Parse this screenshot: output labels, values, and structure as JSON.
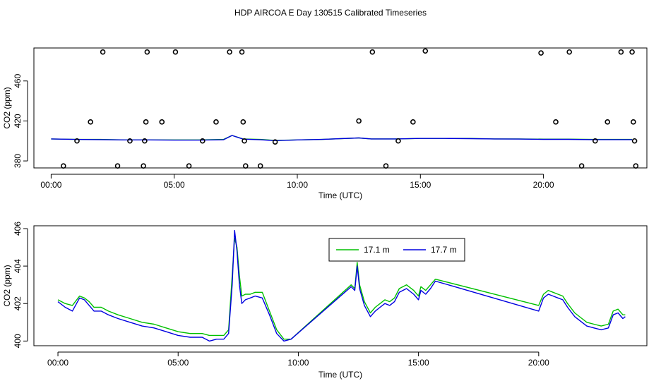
{
  "figure": {
    "title": "HDP AIRCOA E  Day 130515  Calibrated Timeseries"
  },
  "chart_data": [
    {
      "type": "scatter",
      "xlabel": "Time (UTC)",
      "ylabel": "CO2 (ppm)",
      "xlim": [
        -0.7,
        24.2
      ],
      "ylim": [
        373,
        493
      ],
      "x_ticks": [
        0,
        5,
        10,
        15,
        20
      ],
      "x_tick_labels": [
        "00:00",
        "05:00",
        "10:00",
        "15:00",
        "20:00"
      ],
      "y_ticks": [
        380,
        420,
        460
      ],
      "y_tick_labels": [
        "380",
        "420",
        "460"
      ],
      "grid": false,
      "points": {
        "marker": "open-circle",
        "color": "#000000",
        "x": [
          0.5,
          1.05,
          1.6,
          2.1,
          2.7,
          3.2,
          3.75,
          3.8,
          3.85,
          3.9,
          4.5,
          5.05,
          5.6,
          6.15,
          6.7,
          7.25,
          7.75,
          7.8,
          7.85,
          7.9,
          8.5,
          9.1,
          12.5,
          13.05,
          13.6,
          14.1,
          14.7,
          15.2,
          19.9,
          20.5,
          21.05,
          21.55,
          22.1,
          22.6,
          23.15,
          23.6,
          23.65,
          23.7,
          23.75
        ],
        "y": [
          375,
          400,
          419,
          489,
          375,
          400,
          375,
          400,
          419,
          489,
          419,
          489,
          375,
          400,
          419,
          489,
          489,
          419,
          400,
          375,
          375,
          399,
          420,
          489,
          375,
          400,
          419,
          490,
          488,
          419,
          489,
          375,
          400,
          419,
          489,
          489,
          419,
          400,
          375
        ]
      },
      "series": [
        {
          "name": "17.1 m",
          "color": "#00c000",
          "x": [
            0,
            1,
            2,
            3,
            4,
            5,
            6,
            7,
            7.35,
            7.8,
            8.5,
            9.1,
            10,
            11,
            12.5,
            13,
            14,
            15,
            16,
            17,
            18,
            19,
            20,
            21,
            22,
            23,
            23.6
          ],
          "y": [
            402,
            401.5,
            401.5,
            401,
            401,
            401,
            401,
            401.5,
            405.5,
            402,
            401.5,
            400.5,
            401,
            401.5,
            403,
            402,
            402,
            402.5,
            402.5,
            402.5,
            402,
            402,
            401.8,
            401.8,
            401.5,
            401.5,
            401.5
          ]
        },
        {
          "name": "17.7 m",
          "color": "#0000e0",
          "x": [
            0,
            1,
            2,
            3,
            4,
            5,
            6,
            7,
            7.35,
            7.8,
            8.5,
            9.1,
            10,
            11,
            12.5,
            13,
            14,
            15,
            16,
            17,
            18,
            19,
            20,
            21,
            22,
            23,
            23.6
          ],
          "y": [
            402,
            401.5,
            401.3,
            401,
            401,
            400.8,
            400.8,
            401.2,
            405.5,
            401.8,
            401.2,
            400.3,
            401,
            401.5,
            403,
            402,
            402,
            402.5,
            402.5,
            402.3,
            402,
            401.9,
            401.6,
            401.6,
            401.3,
            401.3,
            401.3
          ]
        }
      ]
    },
    {
      "type": "line",
      "xlabel": "Time (UTC)",
      "ylabel": "CO2 (ppm)",
      "xlim": [
        -1,
        24.5
      ],
      "ylim": [
        399.75,
        406.15
      ],
      "x_ticks": [
        0,
        5,
        10,
        15,
        20
      ],
      "x_tick_labels": [
        "00:00",
        "05:00",
        "10:00",
        "15:00",
        "20:00"
      ],
      "y_ticks": [
        400,
        402,
        404,
        406
      ],
      "y_tick_labels": [
        "400",
        "402",
        "404",
        "406"
      ],
      "grid": false,
      "legend": {
        "position": "top-center",
        "entries": [
          "17.1 m",
          "17.7 m"
        ]
      },
      "series": [
        {
          "name": "17.1 m",
          "color": "#00c000",
          "x": [
            0,
            0.3,
            0.6,
            0.9,
            1.1,
            1.3,
            1.5,
            1.8,
            2.1,
            2.5,
            3.0,
            3.5,
            4.0,
            4.5,
            5.0,
            5.5,
            6.0,
            6.3,
            6.6,
            6.9,
            7.1,
            7.25,
            7.35,
            7.45,
            7.55,
            7.65,
            7.8,
            8.0,
            8.2,
            8.5,
            8.8,
            9.1,
            9.4,
            9.7,
            12.2,
            12.35,
            12.45,
            12.55,
            12.75,
            13.0,
            13.2,
            13.4,
            13.6,
            13.8,
            14.0,
            14.2,
            14.5,
            14.8,
            15.0,
            15.1,
            15.3,
            15.5,
            15.7,
            20.0,
            20.2,
            20.4,
            20.6,
            20.8,
            21.0,
            21.2,
            21.5,
            21.8,
            22.0,
            22.3,
            22.6,
            22.9,
            23.1,
            23.3,
            23.5,
            23.6
          ],
          "y": [
            402.2,
            402.0,
            401.9,
            402.4,
            402.3,
            402.1,
            401.8,
            401.8,
            401.6,
            401.4,
            401.2,
            401.0,
            400.9,
            400.7,
            400.5,
            400.4,
            400.4,
            400.3,
            400.3,
            400.3,
            400.6,
            403.5,
            405.5,
            405.0,
            403.5,
            402.4,
            402.5,
            402.5,
            402.6,
            402.6,
            401.6,
            400.6,
            400.1,
            400.1,
            403.0,
            402.8,
            404.2,
            403.0,
            402.1,
            401.5,
            401.8,
            402.0,
            402.2,
            402.1,
            402.3,
            402.8,
            403.0,
            402.7,
            402.4,
            402.9,
            402.7,
            403.0,
            403.3,
            401.9,
            402.5,
            402.7,
            402.6,
            402.5,
            402.4,
            402.0,
            401.5,
            401.2,
            401.0,
            400.9,
            400.8,
            400.9,
            401.6,
            401.7,
            401.4,
            401.4
          ]
        },
        {
          "name": "17.7 m",
          "color": "#0000e0",
          "x": [
            0,
            0.3,
            0.6,
            0.9,
            1.1,
            1.3,
            1.5,
            1.8,
            2.1,
            2.5,
            3.0,
            3.5,
            4.0,
            4.5,
            5.0,
            5.5,
            6.0,
            6.3,
            6.6,
            6.9,
            7.1,
            7.25,
            7.35,
            7.45,
            7.55,
            7.65,
            7.8,
            8.0,
            8.2,
            8.5,
            8.8,
            9.1,
            9.4,
            9.7,
            12.2,
            12.35,
            12.45,
            12.55,
            12.75,
            13.0,
            13.2,
            13.4,
            13.6,
            13.8,
            14.0,
            14.2,
            14.5,
            14.8,
            15.0,
            15.1,
            15.3,
            15.5,
            15.7,
            20.0,
            20.2,
            20.4,
            20.6,
            20.8,
            21.0,
            21.2,
            21.5,
            21.8,
            22.0,
            22.3,
            22.6,
            22.9,
            23.1,
            23.3,
            23.5,
            23.6
          ],
          "y": [
            402.1,
            401.8,
            401.6,
            402.3,
            402.2,
            401.9,
            401.6,
            401.6,
            401.4,
            401.2,
            401.0,
            400.8,
            400.7,
            400.5,
            400.3,
            400.2,
            400.2,
            400.0,
            400.1,
            400.1,
            400.4,
            403.0,
            405.9,
            404.8,
            403.0,
            402.0,
            402.2,
            402.3,
            402.4,
            402.3,
            401.4,
            400.4,
            400.0,
            400.1,
            402.9,
            402.7,
            404.0,
            402.8,
            401.9,
            401.3,
            401.6,
            401.8,
            402.0,
            401.9,
            402.1,
            402.6,
            402.8,
            402.5,
            402.2,
            402.7,
            402.5,
            402.8,
            403.2,
            401.6,
            402.3,
            402.5,
            402.4,
            402.3,
            402.2,
            401.8,
            401.3,
            401.0,
            400.8,
            400.7,
            400.6,
            400.7,
            401.4,
            401.5,
            401.2,
            401.3
          ]
        }
      ]
    }
  ]
}
